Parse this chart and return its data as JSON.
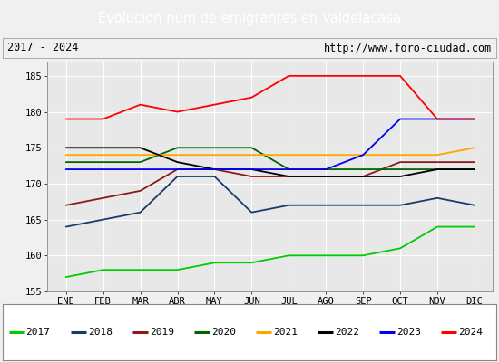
{
  "title": "Evolucion num de emigrantes en Valdelacasa",
  "subtitle_left": "2017 - 2024",
  "subtitle_right": "http://www.foro-ciudad.com",
  "months": [
    "ENE",
    "FEB",
    "MAR",
    "ABR",
    "MAY",
    "JUN",
    "JUL",
    "AGO",
    "SEP",
    "OCT",
    "NOV",
    "DIC"
  ],
  "ylim": [
    155,
    187
  ],
  "yticks": [
    155,
    160,
    165,
    170,
    175,
    180,
    185
  ],
  "series": {
    "2017": {
      "color": "#00cc00",
      "data": [
        157,
        158,
        158,
        158,
        159,
        159,
        160,
        160,
        160,
        161,
        164,
        164
      ]
    },
    "2018": {
      "color": "#1a3a6b",
      "data": [
        164,
        165,
        166,
        171,
        171,
        166,
        167,
        167,
        167,
        167,
        168,
        167
      ]
    },
    "2019": {
      "color": "#8b1a1a",
      "data": [
        167,
        168,
        169,
        172,
        172,
        171,
        171,
        171,
        171,
        173,
        173,
        173
      ]
    },
    "2020": {
      "color": "#006400",
      "data": [
        173,
        173,
        173,
        175,
        175,
        175,
        172,
        172,
        172,
        172,
        172,
        172
      ]
    },
    "2021": {
      "color": "#ffa500",
      "data": [
        174,
        174,
        174,
        174,
        174,
        174,
        174,
        174,
        174,
        174,
        174,
        175
      ]
    },
    "2022": {
      "color": "#000000",
      "data": [
        175,
        175,
        175,
        173,
        172,
        172,
        171,
        171,
        171,
        171,
        172,
        172
      ]
    },
    "2023": {
      "color": "#0000ee",
      "data": [
        172,
        172,
        172,
        172,
        172,
        172,
        172,
        172,
        174,
        179,
        179,
        179
      ]
    },
    "2024": {
      "color": "#ff0000",
      "data": [
        179,
        179,
        181,
        180,
        181,
        182,
        185,
        185,
        185,
        185,
        179,
        179
      ]
    }
  },
  "title_bg": "#4f81bd",
  "title_color": "#ffffff",
  "subtitle_bg": "#f0f0f0",
  "plot_bg": "#e8e8e8",
  "grid_color": "#ffffff",
  "title_fontsize": 10.5,
  "subtitle_fontsize": 8.5,
  "tick_fontsize": 7.5,
  "legend_fontsize": 8
}
